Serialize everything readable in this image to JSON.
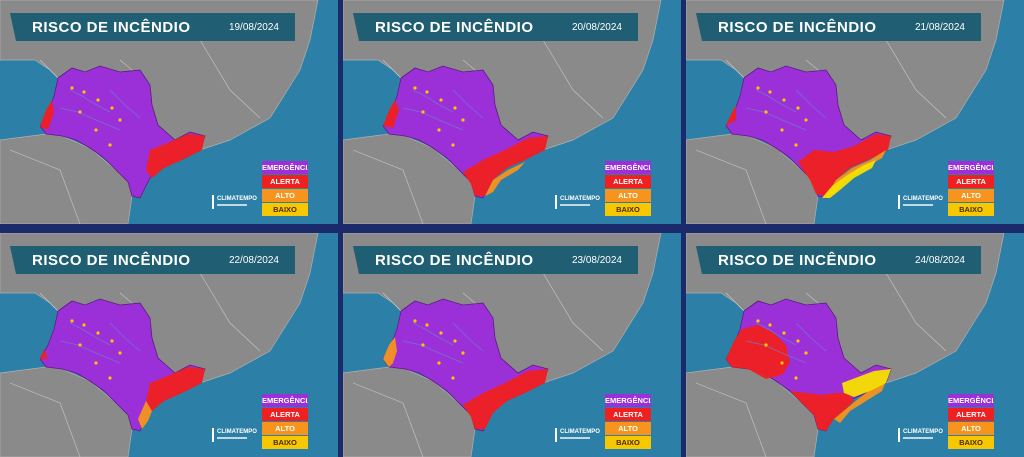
{
  "title": "RISCO DE INCÊNDIO",
  "brand": "CLIMATEMPO",
  "legend": [
    {
      "label": "EMERGÊNCIA",
      "color": "#9b30d9"
    },
    {
      "label": "ALERTA",
      "color": "#f02020"
    },
    {
      "label": "ALTO",
      "color": "#f7941d"
    },
    {
      "label": "BAIXO",
      "color": "#f7c800"
    }
  ],
  "colors": {
    "ocean": "#2c7fa6",
    "land": "#8a8a8a",
    "emergencia": "#9b30d9",
    "alerta": "#f02020",
    "alto": "#f7941d",
    "baixo": "#f7e000",
    "title_bar": "#1f5e73"
  },
  "panels": [
    {
      "date": "19/08/2024",
      "coverage": {
        "emergencia": "most of state",
        "alerta": "southeast coast"
      }
    },
    {
      "date": "20/08/2024",
      "coverage": {
        "emergencia": "most of state",
        "alerta": "south and coast",
        "alto": "coast"
      }
    },
    {
      "date": "21/08/2024",
      "coverage": {
        "emergencia": "most of state",
        "alerta": "south",
        "alto": "coast",
        "baixo": "coast"
      }
    },
    {
      "date": "22/08/2024",
      "coverage": {
        "emergencia": "most of state",
        "alerta": "southeast coast",
        "alto": "coast"
      }
    },
    {
      "date": "23/08/2024",
      "coverage": {
        "emergencia": "most of state",
        "alerta": "south and coast",
        "alto": "coast"
      }
    },
    {
      "date": "24/08/2024",
      "coverage": {
        "emergencia": "north and east",
        "alerta": "west and south",
        "alto": "coast",
        "baixo": "coast"
      }
    }
  ]
}
